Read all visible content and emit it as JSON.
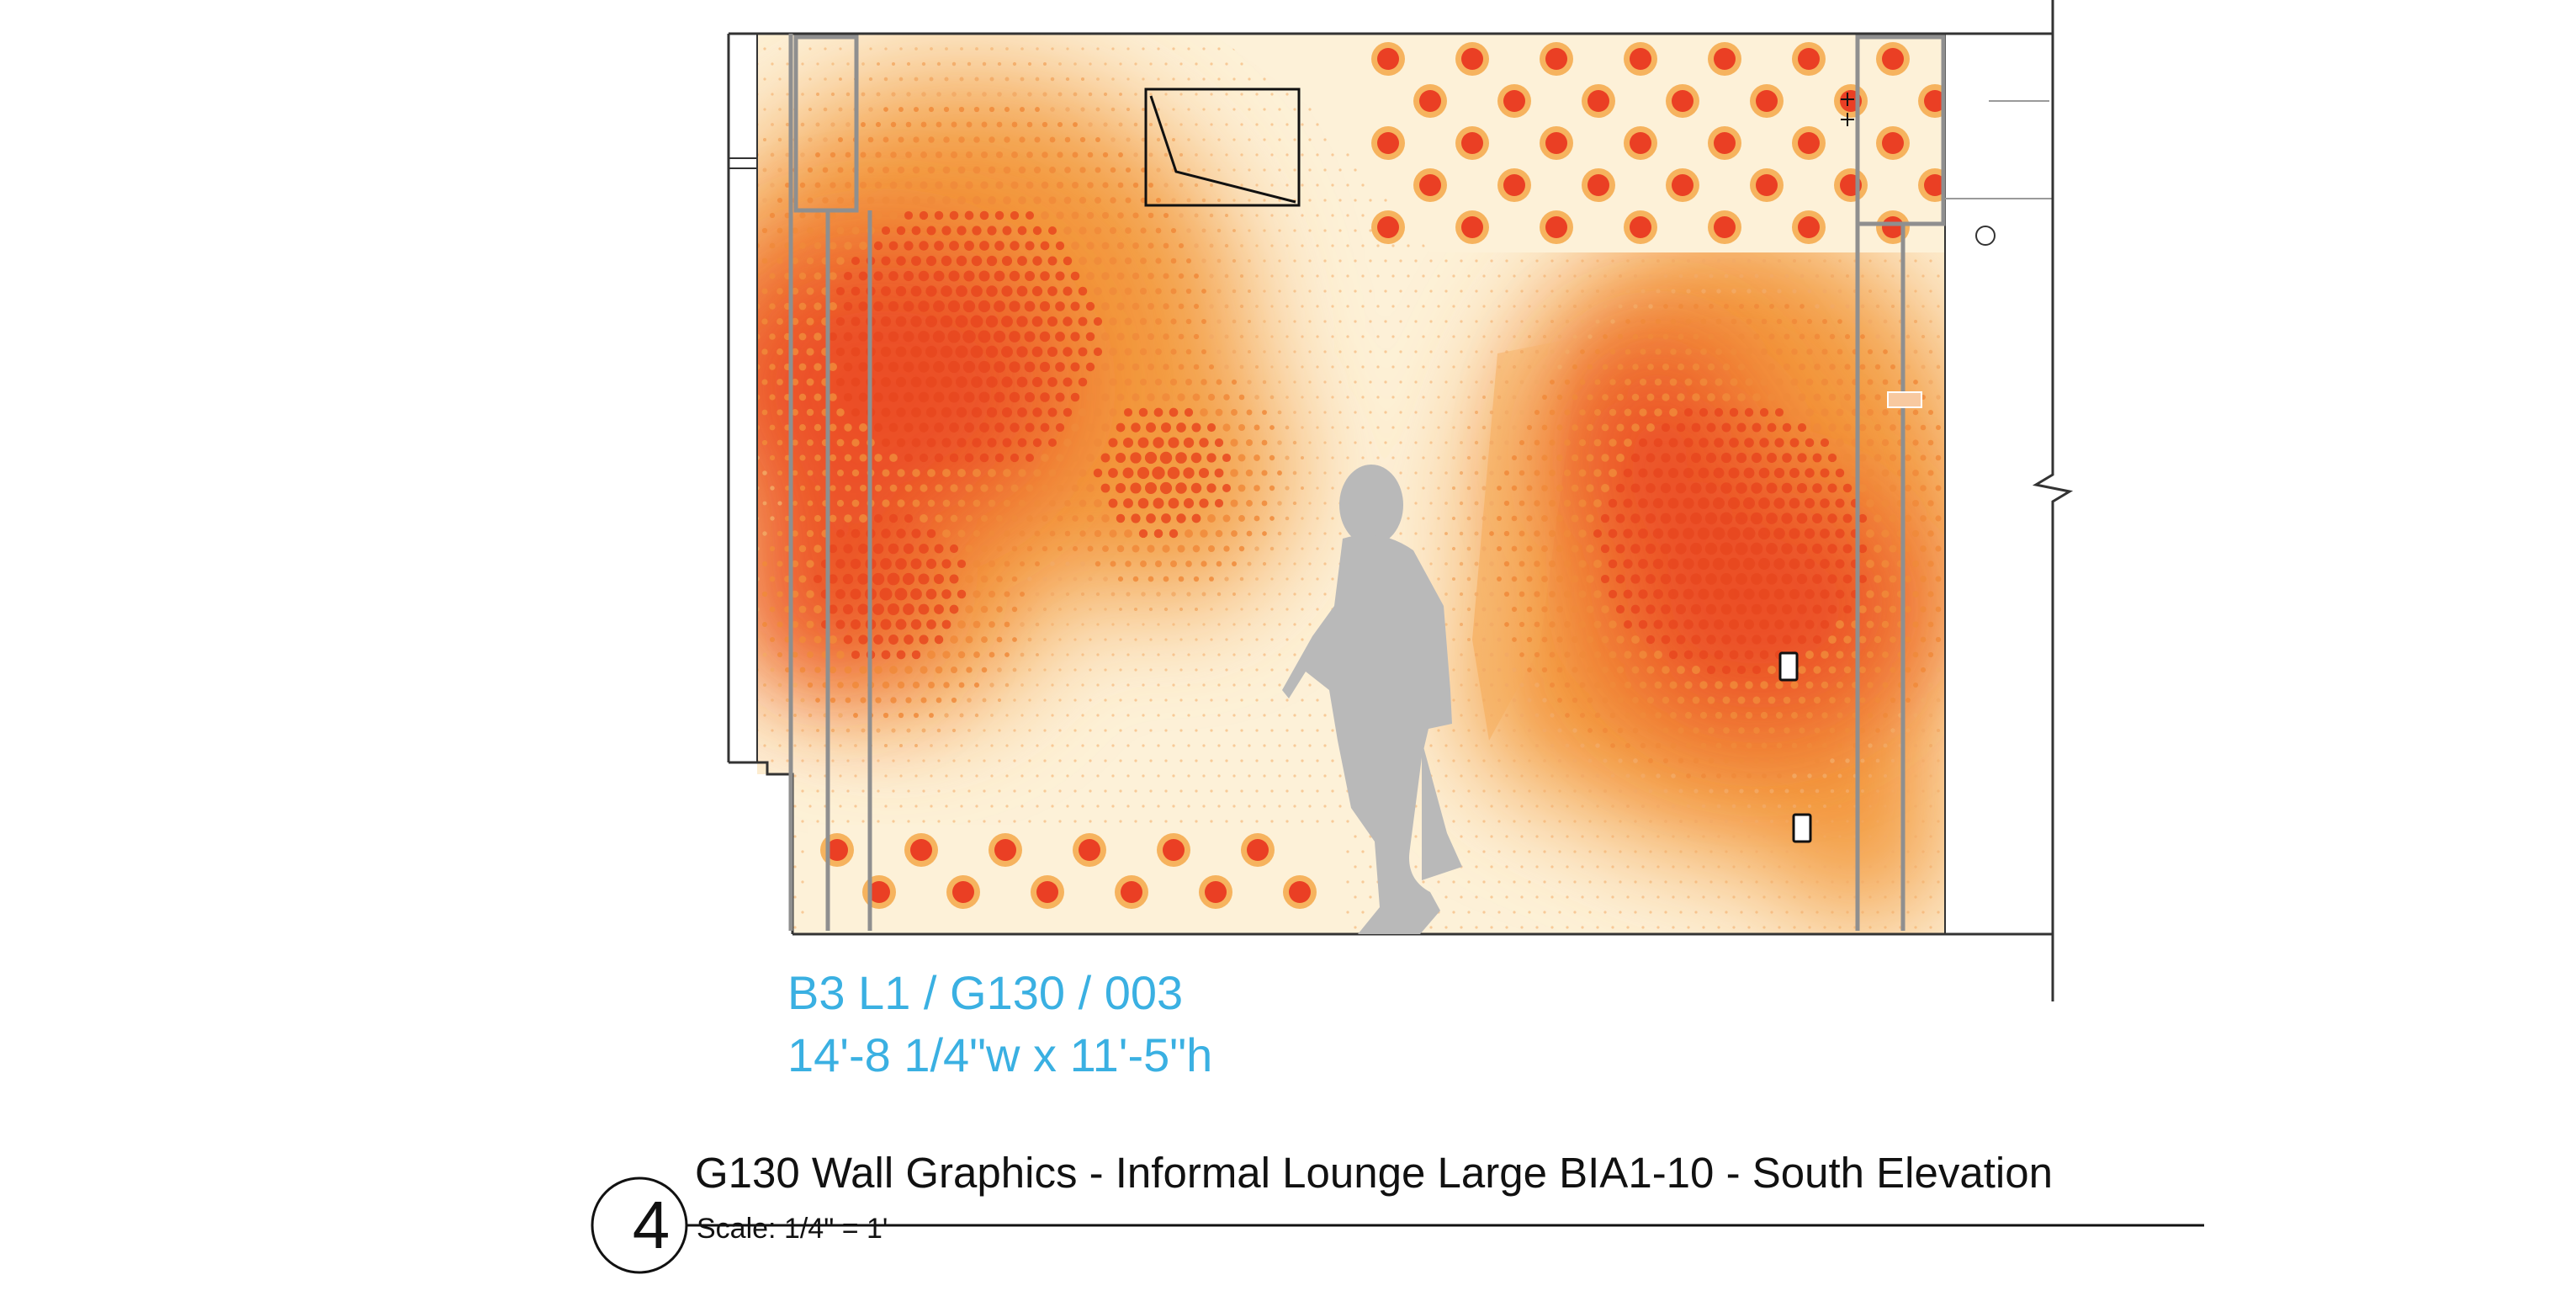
{
  "elevation": {
    "number": "4",
    "title": "G130 Wall Graphics - Informal Lounge Large BIA1-10 - South Elevation",
    "scale": "Scale: 1/4\" = 1'"
  },
  "graphic_code": {
    "id": "B3 L1 / G130 / 003",
    "dimensions": "14'-8 1/4\"w x 11'-5\"h"
  },
  "colors": {
    "cream": "#fdf1d8",
    "orange": "#f39a3e",
    "red": "#ea3f24",
    "code_text": "#3ab0e2",
    "silhouette": "#b9b9b9",
    "line": "#333333"
  },
  "icons": [
    "person-silhouette-icon",
    "outlet-icon",
    "section-break-icon"
  ]
}
